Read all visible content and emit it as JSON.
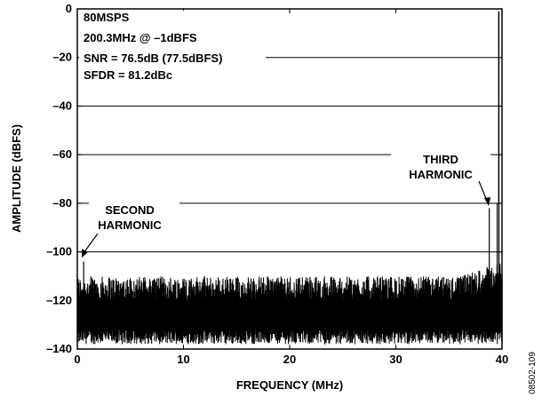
{
  "chart_data": {
    "type": "line",
    "xlabel": "FREQUENCY (MHz)",
    "ylabel": "AMPLITUDE (dBFS)",
    "xlim": [
      0,
      40
    ],
    "ylim": [
      -140,
      0
    ],
    "xticks": [
      0,
      10,
      20,
      30,
      40
    ],
    "yticks": [
      0,
      -20,
      -40,
      -60,
      -80,
      -100,
      -120,
      -140
    ],
    "xtick_labels": [
      "0",
      "10",
      "20",
      "30",
      "40"
    ],
    "ytick_labels": [
      "0",
      "–20",
      "–40",
      "–60",
      "–80",
      "–100",
      "–120",
      "–140"
    ],
    "grid": "horizontal",
    "info_box": [
      "80MSPS",
      "200.3MHz @ –1dBFS",
      "SNR = 76.5dB (77.5dBFS)",
      "SFDR = 81.2dBc"
    ],
    "series": [
      {
        "noise_floor": {
          "x_start": 0,
          "x_end": 40,
          "x_step": 0.04,
          "low_min": -138,
          "low_max": -132,
          "high_min": -120,
          "high_max": -110,
          "rise_start": 36,
          "rise_end": 40,
          "rise_amount": 6
        },
        "spurs": [
          {
            "x": 0.6,
            "y": -104,
            "label": "SECOND HARMONIC"
          },
          {
            "x": 38.8,
            "y": -82,
            "label": "THIRD HARMONIC"
          }
        ],
        "fundamental": {
          "x": 39.7,
          "y": -1
        }
      }
    ],
    "annotations": [
      {
        "id": "second-harmonic",
        "lines": [
          "SECOND",
          "HARMONIC"
        ]
      },
      {
        "id": "third-harmonic",
        "lines": [
          "THIRD",
          "HARMONIC"
        ]
      }
    ]
  },
  "figure_id": "08502-109"
}
